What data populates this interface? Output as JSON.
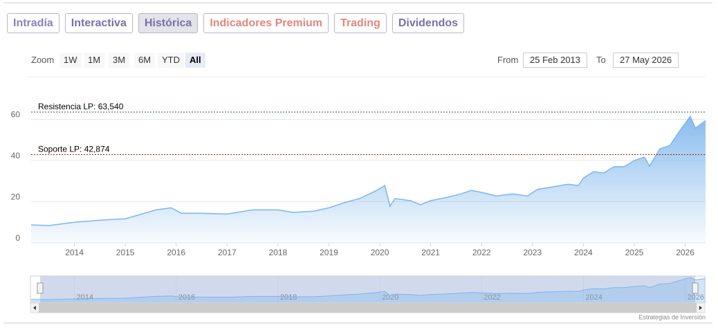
{
  "tabs": [
    {
      "label": "Intradía",
      "color": "#8a80b8"
    },
    {
      "label": "Interactiva",
      "color": "#7a6fa8"
    },
    {
      "label": "Histórica",
      "color": "#7a6fa8"
    },
    {
      "label": "Indicadores Premium",
      "color": "#e0877c"
    },
    {
      "label": "Trading",
      "color": "#e0877c"
    },
    {
      "label": "Dividendos",
      "color": "#7a6fa8"
    }
  ],
  "active_tab": 2,
  "range_selector": {
    "zoom_label": "Zoom",
    "buttons": [
      "1W",
      "1M",
      "3M",
      "6M",
      "YTD",
      "All"
    ],
    "selected_button": 5,
    "from_label": "From",
    "from": "25 Feb 2013",
    "to_label": "To",
    "to": "27 May 2026"
  },
  "chart_data": {
    "type": "area",
    "color": "#7cb5ec",
    "x": [
      2013.15,
      2013.5,
      2014.0,
      2014.5,
      2015.0,
      2015.3,
      2015.6,
      2015.9,
      2016.1,
      2016.5,
      2017.0,
      2017.5,
      2018.0,
      2018.3,
      2018.7,
      2019.0,
      2019.3,
      2019.6,
      2019.9,
      2020.1,
      2020.2,
      2020.3,
      2020.6,
      2020.8,
      2021.0,
      2021.3,
      2021.6,
      2021.8,
      2022.0,
      2022.3,
      2022.6,
      2022.9,
      2023.1,
      2023.4,
      2023.7,
      2023.9,
      2024.0,
      2024.2,
      2024.4,
      2024.6,
      2024.8,
      2025.0,
      2025.2,
      2025.3,
      2025.5,
      2025.7,
      2025.9,
      2026.1,
      2026.2,
      2026.4
    ],
    "values": [
      8.7,
      8.4,
      10,
      11,
      11.7,
      13.8,
      16,
      17,
      14.4,
      14.4,
      14,
      16,
      16,
      14.8,
      15.4,
      17,
      19.5,
      21.5,
      25,
      27.8,
      17.8,
      21.5,
      20.5,
      18.5,
      20.5,
      22,
      23.8,
      25.5,
      24.5,
      22.8,
      23.8,
      22.8,
      26,
      27.2,
      28.5,
      27.8,
      31.5,
      34.6,
      33.9,
      37,
      37,
      40,
      41.6,
      37.2,
      45.6,
      47.3,
      54.7,
      61.4,
      55.7,
      59.4
    ],
    "xlim": [
      2013.15,
      2026.4
    ],
    "xticks": [
      2014,
      2015,
      2016,
      2017,
      2018,
      2019,
      2020,
      2021,
      2022,
      2023,
      2024,
      2025,
      2026
    ],
    "ylim": [
      0,
      80
    ],
    "yticks": [
      0,
      20,
      40,
      60
    ],
    "grid": true,
    "plot_lines": [
      {
        "label": "Resistencia LP: 63,540",
        "value": 63.54,
        "color": "#1f5e1f"
      },
      {
        "label": "Soporte LP: 42,874",
        "value": 42.874,
        "color": "#8b1a1a"
      }
    ],
    "navigator": {
      "xticks": [
        2014,
        2016,
        2018,
        2020,
        2022,
        2024,
        2026
      ]
    },
    "credits": "Estrategias de Inversión"
  }
}
